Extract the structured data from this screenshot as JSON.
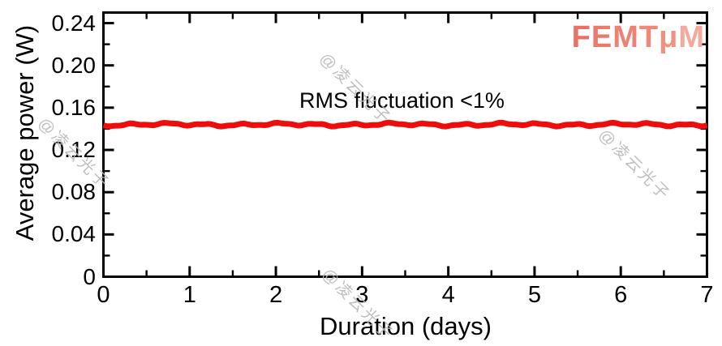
{
  "figure": {
    "background": "#ffffff"
  },
  "logo": {
    "text": "FEMTμM",
    "letters": [
      "F",
      "E",
      "M",
      "T",
      "μ",
      "M"
    ],
    "letter_colors": [
      "#ea7164",
      "#ec7a6c",
      "#ed8173",
      "#ee8879",
      "#ef9183",
      "#f4a99c"
    ]
  },
  "watermark": {
    "text": "@凌云光子",
    "color": "#b9b9b9"
  },
  "chart_data": {
    "type": "line",
    "title": "",
    "xlabel": "Duration (days)",
    "ylabel": "Average power (W)",
    "xlim": [
      0,
      7
    ],
    "ylim": [
      0,
      0.25
    ],
    "x_tick_values": [
      0,
      1,
      2,
      3,
      4,
      5,
      6,
      7
    ],
    "x_tick_labels": [
      "0",
      "1",
      "2",
      "3",
      "4",
      "5",
      "6",
      "7"
    ],
    "x_minor_step": 0.5,
    "y_tick_values": [
      0,
      0.04,
      0.08,
      0.12,
      0.16,
      0.2,
      0.24
    ],
    "y_tick_labels": [
      "0",
      "0.04",
      "0.08",
      "0.12",
      "0.16",
      "0.20",
      "0.24"
    ],
    "y_minor_step": 0.02,
    "grid": false,
    "frame": "closed box, ticks pointing inward on all four sides",
    "axis_color": "#000000",
    "annotation": "RMS fluctuation <1%",
    "series": [
      {
        "name": "Average power",
        "color": "#ee0d0d",
        "x_range_days": [
          0,
          7
        ],
        "y_mean_w": 0.144,
        "y_noise_amplitude_w": 0.001,
        "description": "Flat horizontal trace at ~0.144 W spanning the full 0–7 day duration; RMS fluctuation <1%"
      }
    ]
  }
}
